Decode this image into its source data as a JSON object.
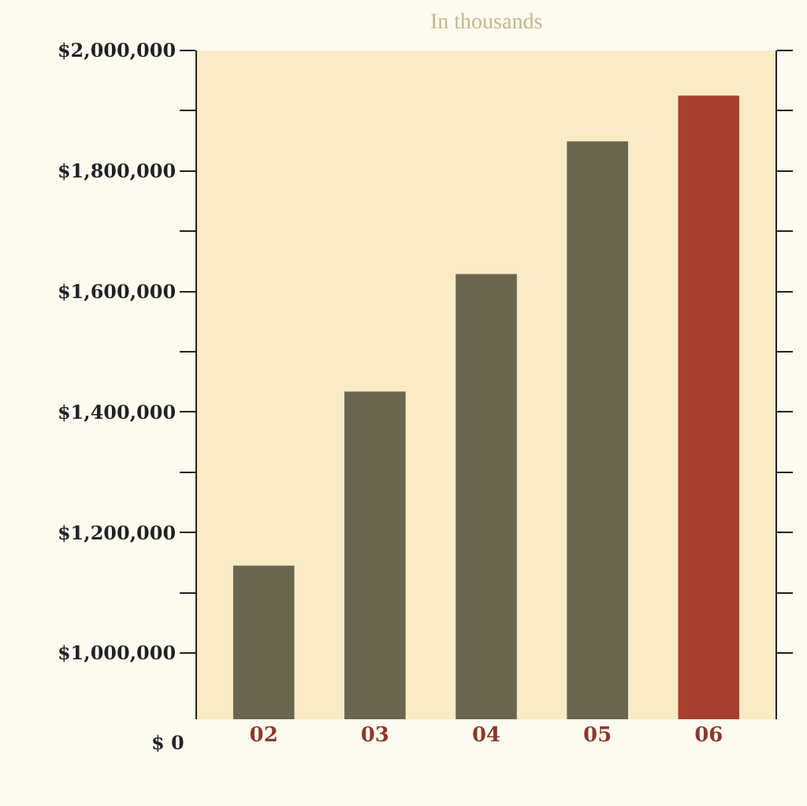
{
  "chart_data": {
    "type": "bar",
    "subtitle": "In thousands",
    "categories": [
      "02",
      "03",
      "04",
      "05",
      "06"
    ],
    "values": [
      1145000,
      1434000,
      1629000,
      1849000,
      1925000
    ],
    "colors": [
      "#6b6650",
      "#6b6650",
      "#6b6650",
      "#6b6650",
      "#a8402f"
    ],
    "ylim": [
      890000,
      2000000
    ],
    "yticks": [
      {
        "value": 1000000,
        "label": "$1,000,000"
      },
      {
        "value": 1100000,
        "label": null
      },
      {
        "value": 1200000,
        "label": "$1,200,000"
      },
      {
        "value": 1300000,
        "label": null
      },
      {
        "value": 1400000,
        "label": "$1,400,000"
      },
      {
        "value": 1500000,
        "label": null
      },
      {
        "value": 1600000,
        "label": "$1,600,000"
      },
      {
        "value": 1700000,
        "label": null
      },
      {
        "value": 1800000,
        "label": "$1,800,000"
      },
      {
        "value": 1900000,
        "label": null
      },
      {
        "value": 2000000,
        "label": "$2,000,000"
      }
    ],
    "annotations": [
      "$ 0"
    ],
    "grid": false
  }
}
